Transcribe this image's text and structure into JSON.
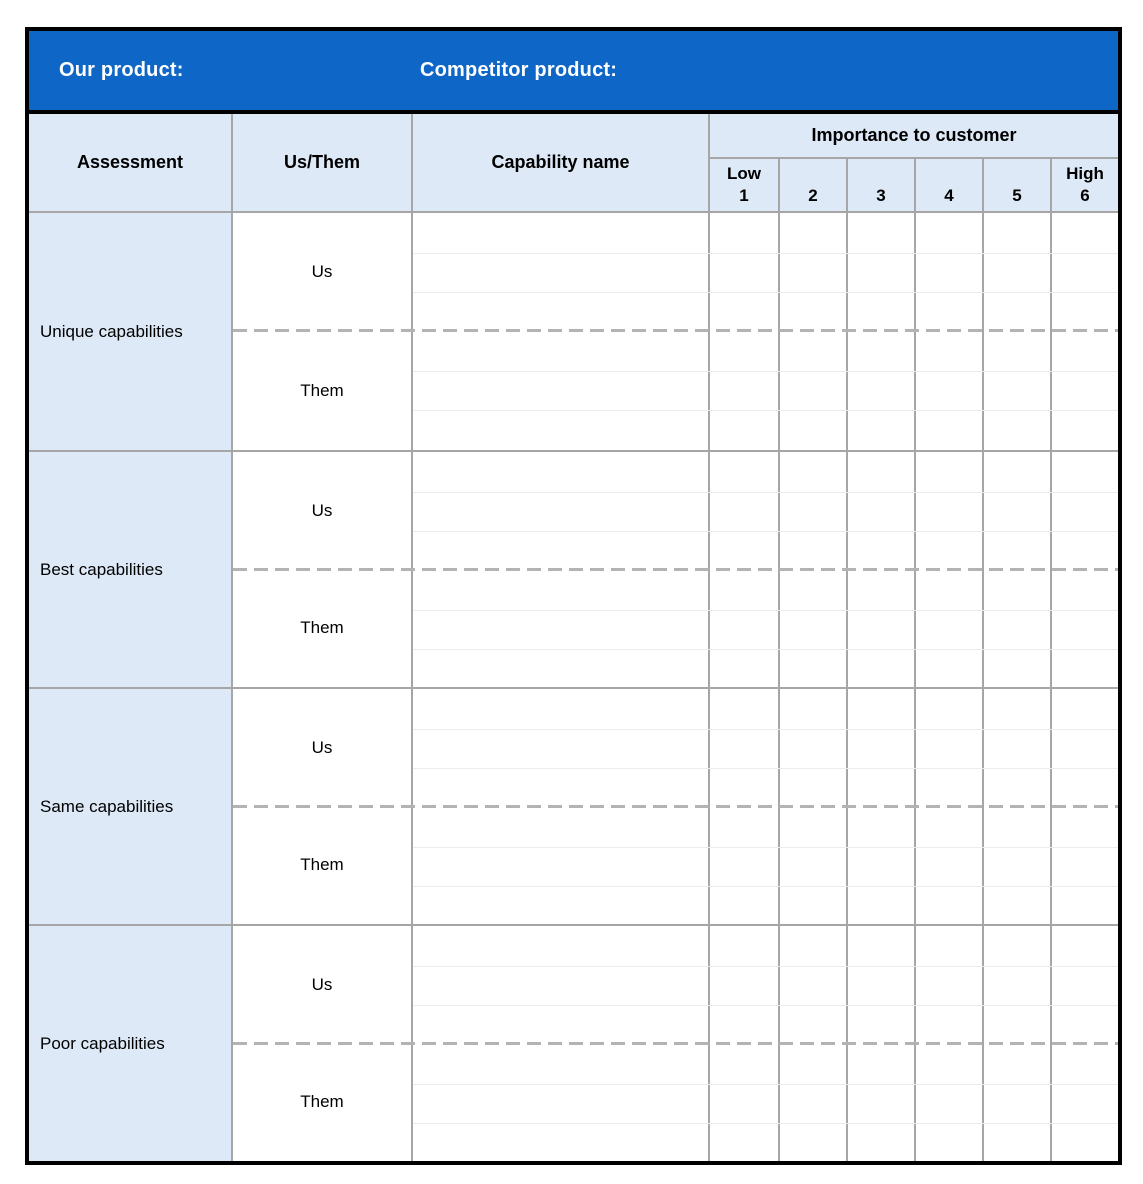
{
  "title_bar": {
    "our_product_label": "Our product:",
    "competitor_product_label": "Competitor product:"
  },
  "columns": {
    "assessment": "Assessment",
    "us_them": "Us/Them",
    "capability_name": "Capability name",
    "importance_title": "Importance to customer",
    "scale": [
      {
        "label": "Low",
        "value": "1"
      },
      {
        "label": "",
        "value": "2"
      },
      {
        "label": "",
        "value": "3"
      },
      {
        "label": "",
        "value": "4"
      },
      {
        "label": "",
        "value": "5"
      },
      {
        "label": "High",
        "value": "6"
      }
    ]
  },
  "sections": [
    {
      "assessment": "Unique capabilities",
      "us_label": "Us",
      "them_label": "Them"
    },
    {
      "assessment": "Best capabilities",
      "us_label": "Us",
      "them_label": "Them"
    },
    {
      "assessment": "Same capabilities",
      "us_label": "Us",
      "them_label": "Them"
    },
    {
      "assessment": "Poor capabilities",
      "us_label": "Us",
      "them_label": "Them"
    }
  ],
  "colors": {
    "header_blue": "#0e66c6",
    "panel_light_blue": "#dde9f6",
    "grid_gray": "#a6a6a6",
    "row_line_gray": "#ececec",
    "dash_gray": "#b3b3b3",
    "border_black": "#000000"
  }
}
